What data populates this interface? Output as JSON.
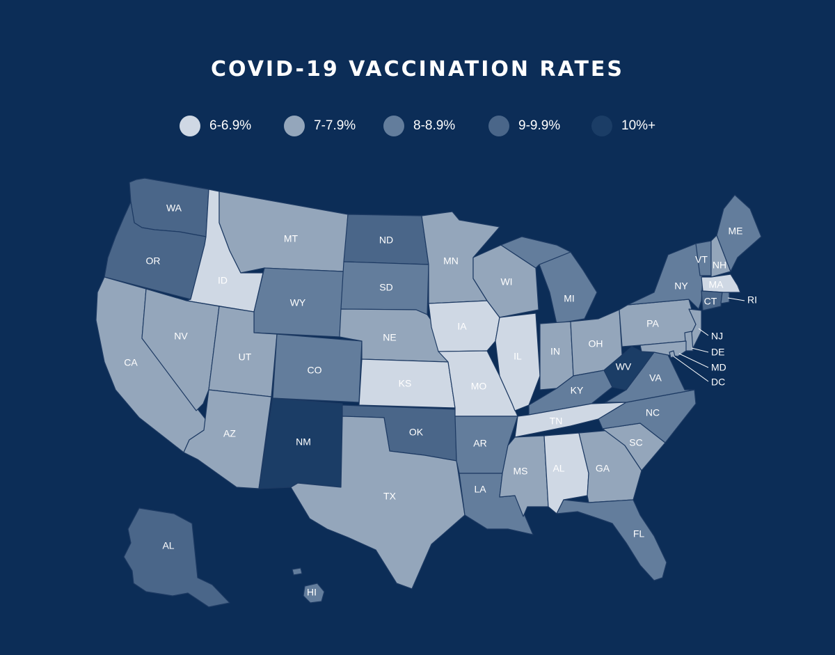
{
  "title": "COVID-19 VACCINATION RATES",
  "colors": {
    "background": "#0c2d57",
    "c6": "#cfd8e4",
    "c7": "#94a6bb",
    "c8": "#637d9c",
    "c9": "#4a6689",
    "c10": "#1b3d66"
  },
  "legend": [
    {
      "label": "6-6.9%",
      "color": "#cfd8e4"
    },
    {
      "label": "7-7.9%",
      "color": "#94a6bb"
    },
    {
      "label": "8-8.9%",
      "color": "#637d9c"
    },
    {
      "label": "9-9.9%",
      "color": "#4a6689"
    },
    {
      "label": "10%+",
      "color": "#1b3d66"
    }
  ],
  "states": {
    "WA": {
      "label": "WA",
      "bin": "9-9.9%"
    },
    "OR": {
      "label": "OR",
      "bin": "9-9.9%"
    },
    "CA": {
      "label": "CA",
      "bin": "7-7.9%"
    },
    "ID": {
      "label": "ID",
      "bin": "6-6.9%"
    },
    "NV": {
      "label": "NV",
      "bin": "7-7.9%"
    },
    "MT": {
      "label": "MT",
      "bin": "7-7.9%"
    },
    "WY": {
      "label": "WY",
      "bin": "8-8.9%"
    },
    "UT": {
      "label": "UT",
      "bin": "7-7.9%"
    },
    "AZ": {
      "label": "AZ",
      "bin": "7-7.9%"
    },
    "CO": {
      "label": "CO",
      "bin": "8-8.9%"
    },
    "NM": {
      "label": "NM",
      "bin": "10%+"
    },
    "ND": {
      "label": "ND",
      "bin": "9-9.9%"
    },
    "SD": {
      "label": "SD",
      "bin": "8-8.9%"
    },
    "NE": {
      "label": "NE",
      "bin": "7-7.9%"
    },
    "KS": {
      "label": "KS",
      "bin": "6-6.9%"
    },
    "OK": {
      "label": "OK",
      "bin": "9-9.9%"
    },
    "TX": {
      "label": "TX",
      "bin": "7-7.9%"
    },
    "MN": {
      "label": "MN",
      "bin": "7-7.9%"
    },
    "IA": {
      "label": "IA",
      "bin": "6-6.9%"
    },
    "MO": {
      "label": "MO",
      "bin": "6-6.9%"
    },
    "AR": {
      "label": "AR",
      "bin": "8-8.9%"
    },
    "LA": {
      "label": "LA",
      "bin": "8-8.9%"
    },
    "WI": {
      "label": "WI",
      "bin": "7-7.9%"
    },
    "IL": {
      "label": "IL",
      "bin": "6-6.9%"
    },
    "MI": {
      "label": "MI",
      "bin": "8-8.9%"
    },
    "IN": {
      "label": "IN",
      "bin": "7-7.9%"
    },
    "OH": {
      "label": "OH",
      "bin": "7-7.9%"
    },
    "KY": {
      "label": "KY",
      "bin": "8-8.9%"
    },
    "TN": {
      "label": "TN",
      "bin": "6-6.9%"
    },
    "MS": {
      "label": "MS",
      "bin": "7-7.9%"
    },
    "AL": {
      "label": "AL",
      "bin": "6-6.9%"
    },
    "GA": {
      "label": "GA",
      "bin": "7-7.9%"
    },
    "FL": {
      "label": "FL",
      "bin": "8-8.9%"
    },
    "SC": {
      "label": "SC",
      "bin": "7-7.9%"
    },
    "NC": {
      "label": "NC",
      "bin": "8-8.9%"
    },
    "VA": {
      "label": "VA",
      "bin": "8-8.9%"
    },
    "WV": {
      "label": "WV",
      "bin": "10%+"
    },
    "PA": {
      "label": "PA",
      "bin": "7-7.9%"
    },
    "NY": {
      "label": "NY",
      "bin": "8-8.9%"
    },
    "VT": {
      "label": "VT",
      "bin": "8-8.9%"
    },
    "NH": {
      "label": "NH",
      "bin": "7-7.9%"
    },
    "ME": {
      "label": "ME",
      "bin": "8-8.9%"
    },
    "MA": {
      "label": "MA",
      "bin": "6-6.9%"
    },
    "CT": {
      "label": "CT",
      "bin": "9-9.9%"
    },
    "RI": {
      "label": "RI",
      "bin": "8-8.9%"
    },
    "NJ": {
      "label": "NJ",
      "bin": "7-7.9%"
    },
    "DE": {
      "label": "DE",
      "bin": "7-7.9%"
    },
    "MD": {
      "label": "MD",
      "bin": "7-7.9%"
    },
    "DC": {
      "label": "DC",
      "bin": "7-7.9%"
    },
    "AK": {
      "label": "AL",
      "bin": "9-9.9%"
    },
    "HI": {
      "label": "HI",
      "bin": "8-8.9%"
    }
  }
}
